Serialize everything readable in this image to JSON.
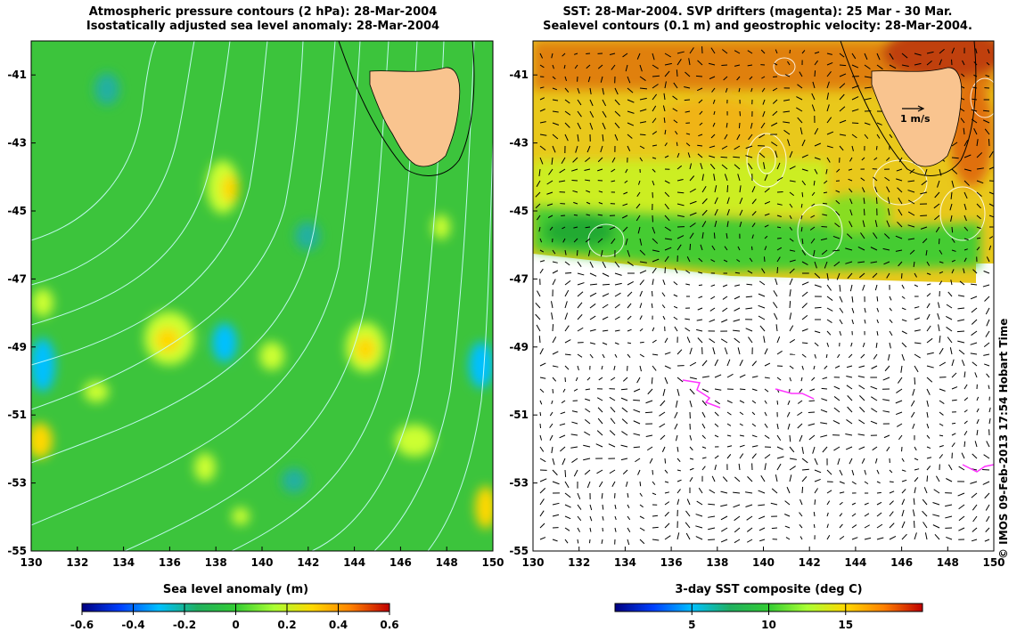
{
  "left_panel": {
    "title_line1": "Atmospheric pressure contours (2 hPa): 28-Mar-2004",
    "title_line2": "Isostatically adjusted sea level anomaly: 28-Mar-2004",
    "x_ticks": [
      "130",
      "132",
      "134",
      "136",
      "138",
      "140",
      "142",
      "144",
      "146",
      "148",
      "150"
    ],
    "y_ticks": [
      "-41",
      "-43",
      "-45",
      "-47",
      "-49",
      "-51",
      "-53",
      "-55"
    ],
    "colorbar_label": "Sea level anomaly (m)",
    "colorbar_ticks": [
      "-0.6",
      "-0.4",
      "-0.2",
      "0",
      "0.2",
      "0.4",
      "0.6"
    ]
  },
  "right_panel": {
    "title_line1": "SST: 28-Mar-2004. SVP drifters (magenta): 25 Mar - 30 Mar.",
    "title_line2": "Sealevel contours (0.1 m) and geostrophic velocity: 28-Mar-2004.",
    "x_ticks": [
      "130",
      "132",
      "134",
      "136",
      "138",
      "140",
      "142",
      "144",
      "146",
      "148",
      "150"
    ],
    "y_ticks": [
      "-41",
      "-43",
      "-45",
      "-47",
      "-49",
      "-51",
      "-53",
      "-55"
    ],
    "scale_arrow_label": "1 m/s",
    "colorbar_label": "3-day SST composite (deg C)",
    "colorbar_ticks": [
      "5",
      "10",
      "15"
    ]
  },
  "credit": "© IMOS 09-Feb-2013 17:54 Hobart Time",
  "map_extent": {
    "lon": [
      130,
      150
    ],
    "lat": [
      -55,
      -40
    ]
  },
  "colors": {
    "land": "#f9c48f",
    "sla_background": "#3cc43c",
    "sst_background": "#e9c81b",
    "drifter": "#ff33ff"
  },
  "map_data": {
    "sla_cmap": [
      "#000080",
      "#0040ff",
      "#00c0ff",
      "#20b060",
      "#33cc33",
      "#aaff33",
      "#ffd800",
      "#ff8000",
      "#c00000"
    ],
    "sst_cmap": [
      "#000080",
      "#0040ff",
      "#00c0ff",
      "#20b060",
      "#33cc33",
      "#aaff33",
      "#ffd800",
      "#ff8000",
      "#c00000"
    ],
    "sla_colorbar_range": [
      -0.6,
      0.6
    ],
    "sst_colorbar_range": [
      0,
      20
    ],
    "sst_coverage_limit_lat": -47
  }
}
